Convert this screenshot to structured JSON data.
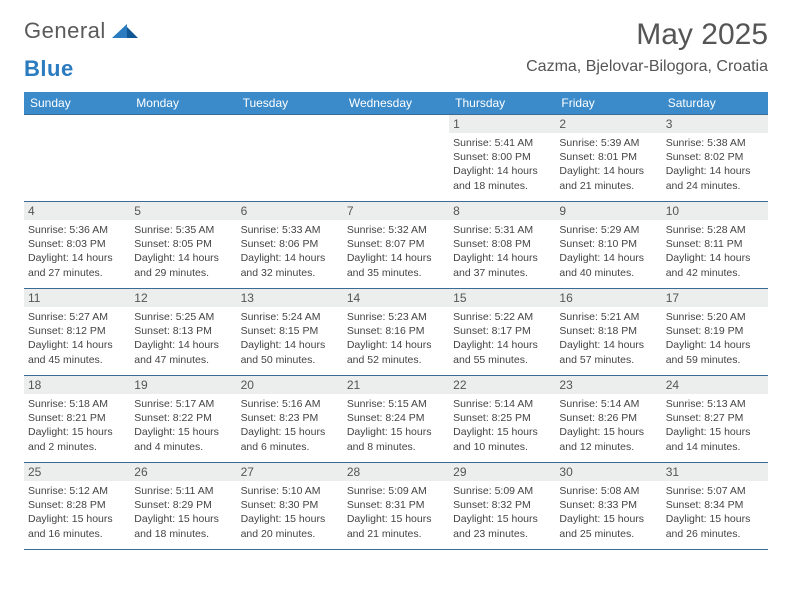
{
  "logo": {
    "word1": "General",
    "word2": "Blue",
    "color1": "#5a5a5a",
    "color2": "#2a7bc0"
  },
  "title": "May 2025",
  "location": "Cazma, Bjelovar-Bilogora, Croatia",
  "header_bg": "#3b8bca",
  "row_border": "#3b6a94",
  "daynum_bg": "#eceded",
  "days_of_week": [
    "Sunday",
    "Monday",
    "Tuesday",
    "Wednesday",
    "Thursday",
    "Friday",
    "Saturday"
  ],
  "weeks": [
    [
      {
        "blank": true
      },
      {
        "blank": true
      },
      {
        "blank": true
      },
      {
        "blank": true
      },
      {
        "day": 1,
        "sunrise": "5:41 AM",
        "sunset": "8:00 PM",
        "daylight": "14 hours and 18 minutes."
      },
      {
        "day": 2,
        "sunrise": "5:39 AM",
        "sunset": "8:01 PM",
        "daylight": "14 hours and 21 minutes."
      },
      {
        "day": 3,
        "sunrise": "5:38 AM",
        "sunset": "8:02 PM",
        "daylight": "14 hours and 24 minutes."
      }
    ],
    [
      {
        "day": 4,
        "sunrise": "5:36 AM",
        "sunset": "8:03 PM",
        "daylight": "14 hours and 27 minutes."
      },
      {
        "day": 5,
        "sunrise": "5:35 AM",
        "sunset": "8:05 PM",
        "daylight": "14 hours and 29 minutes."
      },
      {
        "day": 6,
        "sunrise": "5:33 AM",
        "sunset": "8:06 PM",
        "daylight": "14 hours and 32 minutes."
      },
      {
        "day": 7,
        "sunrise": "5:32 AM",
        "sunset": "8:07 PM",
        "daylight": "14 hours and 35 minutes."
      },
      {
        "day": 8,
        "sunrise": "5:31 AM",
        "sunset": "8:08 PM",
        "daylight": "14 hours and 37 minutes."
      },
      {
        "day": 9,
        "sunrise": "5:29 AM",
        "sunset": "8:10 PM",
        "daylight": "14 hours and 40 minutes."
      },
      {
        "day": 10,
        "sunrise": "5:28 AM",
        "sunset": "8:11 PM",
        "daylight": "14 hours and 42 minutes."
      }
    ],
    [
      {
        "day": 11,
        "sunrise": "5:27 AM",
        "sunset": "8:12 PM",
        "daylight": "14 hours and 45 minutes."
      },
      {
        "day": 12,
        "sunrise": "5:25 AM",
        "sunset": "8:13 PM",
        "daylight": "14 hours and 47 minutes."
      },
      {
        "day": 13,
        "sunrise": "5:24 AM",
        "sunset": "8:15 PM",
        "daylight": "14 hours and 50 minutes."
      },
      {
        "day": 14,
        "sunrise": "5:23 AM",
        "sunset": "8:16 PM",
        "daylight": "14 hours and 52 minutes."
      },
      {
        "day": 15,
        "sunrise": "5:22 AM",
        "sunset": "8:17 PM",
        "daylight": "14 hours and 55 minutes."
      },
      {
        "day": 16,
        "sunrise": "5:21 AM",
        "sunset": "8:18 PM",
        "daylight": "14 hours and 57 minutes."
      },
      {
        "day": 17,
        "sunrise": "5:20 AM",
        "sunset": "8:19 PM",
        "daylight": "14 hours and 59 minutes."
      }
    ],
    [
      {
        "day": 18,
        "sunrise": "5:18 AM",
        "sunset": "8:21 PM",
        "daylight": "15 hours and 2 minutes."
      },
      {
        "day": 19,
        "sunrise": "5:17 AM",
        "sunset": "8:22 PM",
        "daylight": "15 hours and 4 minutes."
      },
      {
        "day": 20,
        "sunrise": "5:16 AM",
        "sunset": "8:23 PM",
        "daylight": "15 hours and 6 minutes."
      },
      {
        "day": 21,
        "sunrise": "5:15 AM",
        "sunset": "8:24 PM",
        "daylight": "15 hours and 8 minutes."
      },
      {
        "day": 22,
        "sunrise": "5:14 AM",
        "sunset": "8:25 PM",
        "daylight": "15 hours and 10 minutes."
      },
      {
        "day": 23,
        "sunrise": "5:14 AM",
        "sunset": "8:26 PM",
        "daylight": "15 hours and 12 minutes."
      },
      {
        "day": 24,
        "sunrise": "5:13 AM",
        "sunset": "8:27 PM",
        "daylight": "15 hours and 14 minutes."
      }
    ],
    [
      {
        "day": 25,
        "sunrise": "5:12 AM",
        "sunset": "8:28 PM",
        "daylight": "15 hours and 16 minutes."
      },
      {
        "day": 26,
        "sunrise": "5:11 AM",
        "sunset": "8:29 PM",
        "daylight": "15 hours and 18 minutes."
      },
      {
        "day": 27,
        "sunrise": "5:10 AM",
        "sunset": "8:30 PM",
        "daylight": "15 hours and 20 minutes."
      },
      {
        "day": 28,
        "sunrise": "5:09 AM",
        "sunset": "8:31 PM",
        "daylight": "15 hours and 21 minutes."
      },
      {
        "day": 29,
        "sunrise": "5:09 AM",
        "sunset": "8:32 PM",
        "daylight": "15 hours and 23 minutes."
      },
      {
        "day": 30,
        "sunrise": "5:08 AM",
        "sunset": "8:33 PM",
        "daylight": "15 hours and 25 minutes."
      },
      {
        "day": 31,
        "sunrise": "5:07 AM",
        "sunset": "8:34 PM",
        "daylight": "15 hours and 26 minutes."
      }
    ]
  ],
  "labels": {
    "sunrise": "Sunrise:",
    "sunset": "Sunset:",
    "daylight": "Daylight:"
  }
}
